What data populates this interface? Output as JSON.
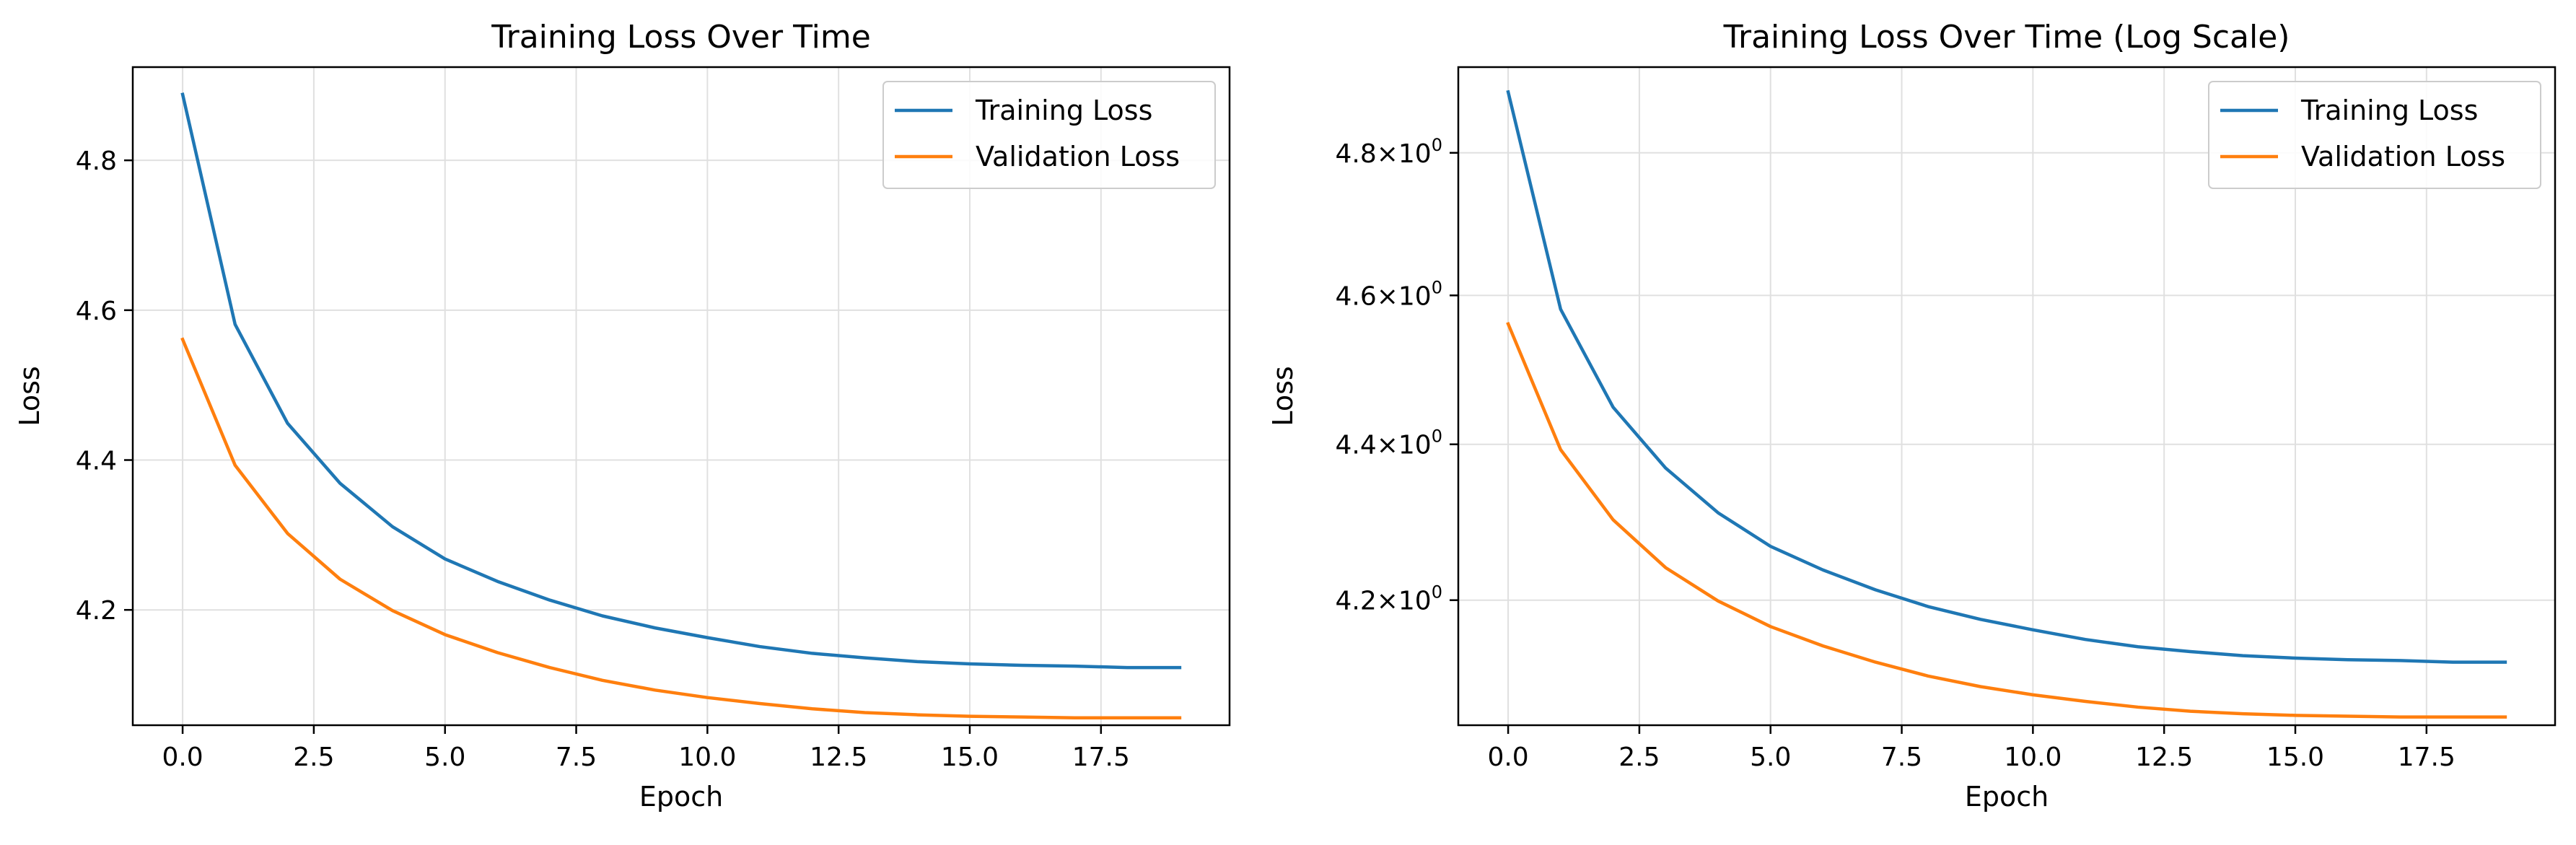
{
  "colors": {
    "training": "#1f77b4",
    "validation": "#ff7f0e",
    "grid": "#e0e0e0",
    "axes": "#000000"
  },
  "chart_data": [
    {
      "type": "line",
      "title": "Training Loss Over Time",
      "xlabel": "Epoch",
      "ylabel": "Loss",
      "yscale": "linear",
      "grid": true,
      "legend": "top-right",
      "xlim": [
        -0.95,
        19.95
      ],
      "ylim": [
        4.0461,
        4.9244
      ],
      "xticks": [
        0,
        2.5,
        5,
        7.5,
        10,
        12.5,
        15,
        17.5
      ],
      "xtick_labels": [
        "0.0",
        "2.5",
        "5.0",
        "7.5",
        "10.0",
        "12.5",
        "15.0",
        "17.5"
      ],
      "yticks": [
        4.2,
        4.4,
        4.6,
        4.8
      ],
      "ytick_labels": [
        "4.2",
        "4.4",
        "4.6",
        "4.8"
      ],
      "x": [
        0,
        1,
        2,
        3,
        4,
        5,
        6,
        7,
        8,
        9,
        10,
        11,
        12,
        13,
        14,
        15,
        16,
        17,
        18,
        19
      ],
      "series": [
        {
          "name": "Training Loss",
          "values": [
            4.888,
            4.581,
            4.449,
            4.369,
            4.311,
            4.268,
            4.238,
            4.213,
            4.192,
            4.176,
            4.163,
            4.151,
            4.142,
            4.136,
            4.131,
            4.128,
            4.126,
            4.125,
            4.123,
            4.123
          ]
        },
        {
          "name": "Validation Loss",
          "values": [
            4.561,
            4.393,
            4.302,
            4.241,
            4.199,
            4.167,
            4.143,
            4.123,
            4.106,
            4.093,
            4.083,
            4.075,
            4.068,
            4.063,
            4.06,
            4.058,
            4.057,
            4.056,
            4.056,
            4.056
          ]
        }
      ]
    },
    {
      "type": "line",
      "title": "Training Loss Over Time (Log Scale)",
      "xlabel": "Epoch",
      "ylabel": "Loss",
      "yscale": "log",
      "grid": true,
      "legend": "top-right",
      "xlim": [
        -0.95,
        19.95
      ],
      "ylim": [
        4.0461,
        4.9244
      ],
      "xticks": [
        0,
        2.5,
        5,
        7.5,
        10,
        12.5,
        15,
        17.5
      ],
      "xtick_labels": [
        "0.0",
        "2.5",
        "5.0",
        "7.5",
        "10.0",
        "12.5",
        "15.0",
        "17.5"
      ],
      "yticks": [
        4.2,
        4.4,
        4.6,
        4.8
      ],
      "ytick_labels": [
        "4.2",
        "4.4",
        "4.6",
        "4.8"
      ],
      "ytick_suffix": "×10",
      "ytick_exponent": "0",
      "x": [
        0,
        1,
        2,
        3,
        4,
        5,
        6,
        7,
        8,
        9,
        10,
        11,
        12,
        13,
        14,
        15,
        16,
        17,
        18,
        19
      ],
      "series": [
        {
          "name": "Training Loss",
          "values": [
            4.888,
            4.581,
            4.449,
            4.369,
            4.311,
            4.268,
            4.238,
            4.213,
            4.192,
            4.176,
            4.163,
            4.151,
            4.142,
            4.136,
            4.131,
            4.128,
            4.126,
            4.125,
            4.123,
            4.123
          ]
        },
        {
          "name": "Validation Loss",
          "values": [
            4.561,
            4.393,
            4.302,
            4.241,
            4.199,
            4.167,
            4.143,
            4.123,
            4.106,
            4.093,
            4.083,
            4.075,
            4.068,
            4.063,
            4.06,
            4.058,
            4.057,
            4.056,
            4.056,
            4.056
          ]
        }
      ]
    }
  ]
}
